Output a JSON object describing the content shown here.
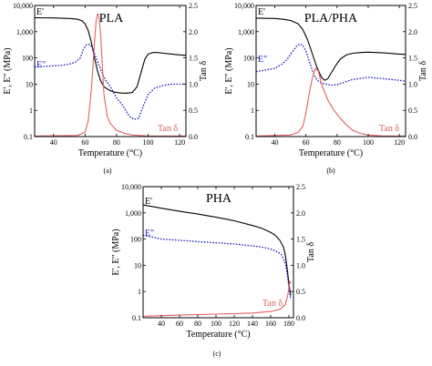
{
  "chart_data": [
    {
      "type": "line",
      "title": "PLA",
      "caption": "(a)",
      "xlabel": "Temperature (°C)",
      "ylabel_left": "E', E\" (MPa)",
      "ylabel_right": "Tan δ",
      "xlim": [
        28,
        124
      ],
      "xticks": [
        40,
        60,
        80,
        100,
        120
      ],
      "ylim_left": [
        0.1,
        10000
      ],
      "ylim_left_scale": "log",
      "yticks_left": [
        "0.1",
        "1",
        "10",
        "100",
        "1,000",
        "10,000"
      ],
      "ylim_right": [
        0,
        2.5
      ],
      "yticks_right": [
        "0.0",
        "0.5",
        "1.0",
        "1.5",
        "2.0",
        "2.5"
      ],
      "series": [
        {
          "name": "E'",
          "color": "#000000",
          "style": "solid",
          "axis": "left",
          "x": [
            28,
            40,
            50,
            55,
            58,
            60,
            62,
            64,
            66,
            68,
            70,
            72,
            75,
            78,
            82,
            86,
            90,
            93,
            96,
            98,
            100,
            103,
            106,
            110,
            115,
            120,
            124
          ],
          "y": [
            3400,
            3350,
            3200,
            3000,
            2600,
            2000,
            1100,
            380,
            100,
            30,
            13,
            8,
            6,
            5,
            4.6,
            4.5,
            4.8,
            8,
            35,
            90,
            140,
            160,
            160,
            150,
            140,
            130,
            125
          ]
        },
        {
          "name": "E\"",
          "color": "#1f1fbf",
          "style": "dotted",
          "axis": "left",
          "x": [
            28,
            40,
            45,
            50,
            54,
            57,
            59,
            61,
            63,
            65,
            67,
            69,
            71,
            73,
            76,
            80,
            84,
            88,
            91,
            94,
            97,
            100,
            104,
            110,
            115,
            120,
            124
          ],
          "y": [
            45,
            50,
            52,
            58,
            70,
            100,
            220,
            320,
            330,
            220,
            100,
            50,
            25,
            14,
            8,
            3,
            1.5,
            0.6,
            0.45,
            0.5,
            1.5,
            4,
            7,
            9,
            10,
            10,
            10
          ]
        },
        {
          "name": "Tan δ",
          "color": "#e06060",
          "style": "solid",
          "axis": "right",
          "x": [
            28,
            55,
            60,
            62,
            64,
            66,
            67,
            68,
            69,
            70,
            71,
            72,
            74,
            76,
            80,
            85,
            90,
            100,
            110,
            124
          ],
          "y": [
            0.01,
            0.02,
            0.08,
            0.3,
            0.9,
            1.8,
            2.2,
            2.35,
            2.25,
            1.9,
            1.3,
            0.8,
            0.4,
            0.25,
            0.12,
            0.06,
            0.03,
            0.01,
            0.01,
            0.01
          ]
        }
      ]
    },
    {
      "type": "line",
      "title": "PLA/PHA",
      "caption": "(b)",
      "xlabel": "Temperature (°C)",
      "ylabel_left": "E', E\" (MPa)",
      "ylabel_right": "Tan δ",
      "xlim": [
        28,
        124
      ],
      "xticks": [
        40,
        60,
        80,
        100,
        120
      ],
      "ylim_left": [
        0.1,
        10000
      ],
      "ylim_left_scale": "log",
      "yticks_left": [
        "0.1",
        "1",
        "10",
        "100",
        "1,000",
        "10,000"
      ],
      "ylim_right": [
        0,
        2.5
      ],
      "yticks_right": [
        "0.0",
        "0.5",
        "1.0",
        "1.5",
        "2.0",
        "2.5"
      ],
      "series": [
        {
          "name": "E'",
          "color": "#000000",
          "style": "solid",
          "axis": "left",
          "x": [
            28,
            40,
            45,
            50,
            55,
            58,
            61,
            64,
            67,
            70,
            72,
            74,
            76,
            79,
            82,
            86,
            90,
            95,
            100,
            110,
            120,
            124
          ],
          "y": [
            3300,
            3200,
            3000,
            2700,
            2000,
            1200,
            500,
            150,
            45,
            18,
            14,
            16,
            25,
            50,
            90,
            130,
            150,
            160,
            165,
            155,
            140,
            135
          ]
        },
        {
          "name": "E\"",
          "color": "#1f1fbf",
          "style": "dotted",
          "axis": "left",
          "x": [
            28,
            40,
            45,
            48,
            51,
            54,
            56,
            58,
            60,
            62,
            64,
            66,
            68,
            70,
            73,
            76,
            80,
            85,
            90,
            100,
            110,
            120,
            124
          ],
          "y": [
            30,
            40,
            60,
            90,
            160,
            280,
            340,
            300,
            180,
            80,
            35,
            18,
            13,
            11,
            10,
            9,
            9.5,
            12,
            15,
            18,
            16,
            14,
            13
          ]
        },
        {
          "name": "Tan δ",
          "color": "#e06060",
          "style": "solid",
          "axis": "right",
          "x": [
            28,
            50,
            55,
            58,
            60,
            62,
            64,
            66,
            68,
            70,
            74,
            78,
            82,
            86,
            90,
            95,
            100,
            110,
            124
          ],
          "y": [
            0.01,
            0.03,
            0.08,
            0.2,
            0.45,
            0.8,
            1.1,
            1.3,
            1.25,
            1.0,
            0.7,
            0.5,
            0.35,
            0.22,
            0.12,
            0.06,
            0.03,
            0.01,
            0.01
          ]
        }
      ]
    },
    {
      "type": "line",
      "title": "PHA",
      "caption": "(c)",
      "xlabel": "Temperature (°C)",
      "ylabel_left": "E', E\" (MPa)",
      "ylabel_right": "Tan δ",
      "xlim": [
        20,
        185
      ],
      "xticks": [
        40,
        60,
        80,
        100,
        120,
        140,
        160,
        180
      ],
      "ylim_left": [
        0.1,
        10000
      ],
      "ylim_left_scale": "log",
      "yticks_left": [
        "0.1",
        "1",
        "10",
        "100",
        "1,000",
        "10,000"
      ],
      "ylim_right": [
        0,
        2.5
      ],
      "yticks_right": [
        "0.0",
        "0.5",
        "1.0",
        "1.5",
        "2.0",
        "2.5"
      ],
      "series": [
        {
          "name": "E'",
          "color": "#000000",
          "style": "solid",
          "axis": "left",
          "x": [
            20,
            40,
            60,
            80,
            100,
            120,
            140,
            150,
            160,
            165,
            170,
            174,
            176,
            178,
            180,
            182
          ],
          "y": [
            2000,
            1500,
            1150,
            900,
            680,
            500,
            330,
            260,
            180,
            140,
            90,
            50,
            25,
            8,
            2,
            0.7
          ]
        },
        {
          "name": "E\"",
          "color": "#1f1fbf",
          "style": "dotted",
          "axis": "left",
          "x": [
            20,
            30,
            40,
            50,
            60,
            80,
            100,
            120,
            140,
            150,
            160,
            168,
            172,
            176,
            178,
            180,
            182
          ],
          "y": [
            140,
            120,
            100,
            95,
            90,
            80,
            72,
            65,
            55,
            50,
            42,
            32,
            25,
            12,
            5,
            1.5,
            0.5
          ]
        },
        {
          "name": "Tan δ",
          "color": "#e06060",
          "style": "solid",
          "axis": "right",
          "x": [
            20,
            60,
            100,
            140,
            160,
            170,
            176,
            179,
            181,
            182
          ],
          "y": [
            0.03,
            0.05,
            0.07,
            0.09,
            0.12,
            0.16,
            0.25,
            0.45,
            0.7,
            0.65
          ]
        }
      ]
    }
  ]
}
